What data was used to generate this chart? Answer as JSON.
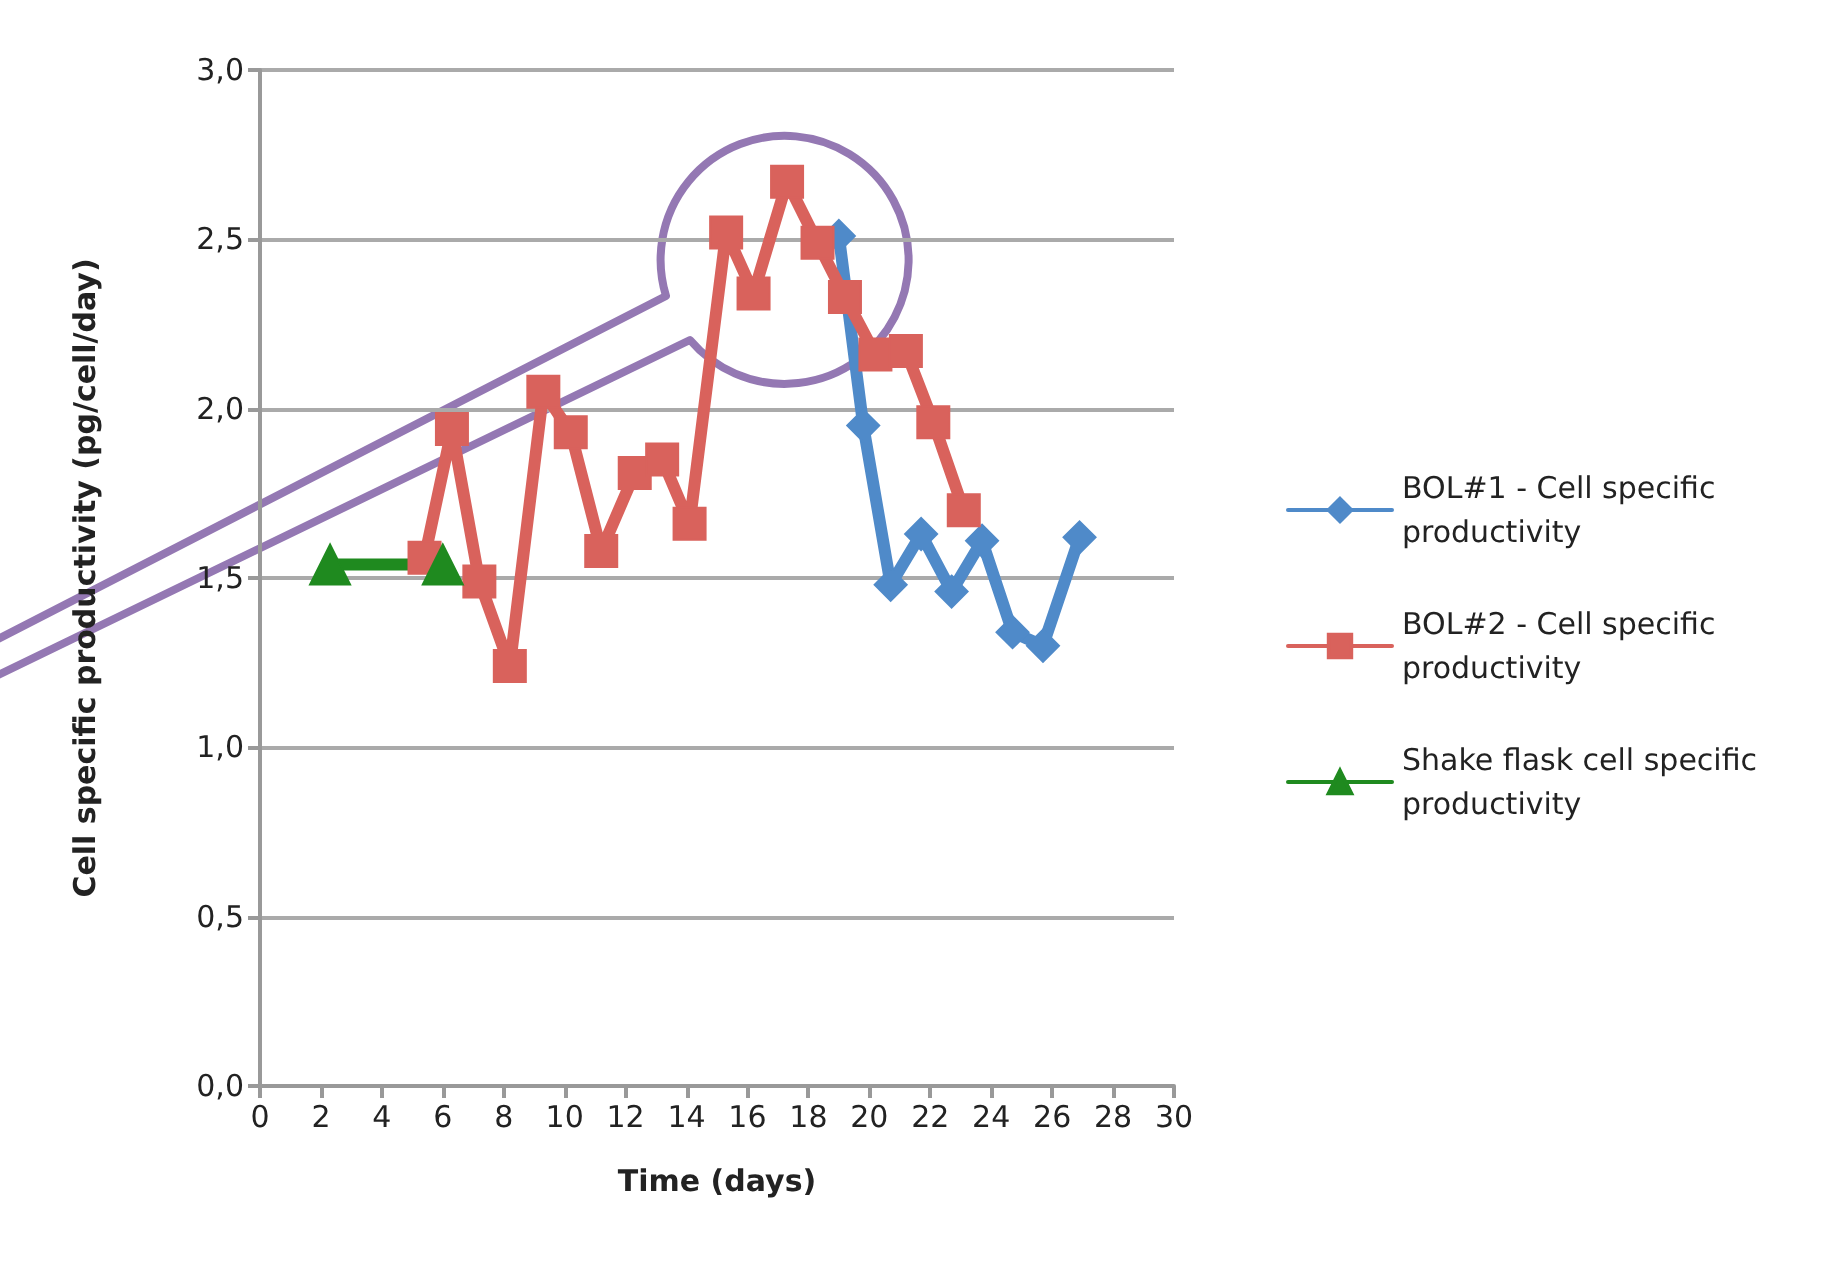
{
  "chart_data": {
    "type": "line",
    "xlabel": "Time (days)",
    "ylabel": "Cell specific productivity (pg/cell/day)",
    "xlim": [
      0,
      30
    ],
    "xticks": [
      0,
      2,
      4,
      6,
      8,
      10,
      12,
      14,
      16,
      18,
      20,
      22,
      24,
      26,
      28,
      30
    ],
    "ylim": [
      0,
      3
    ],
    "yticks": [
      {
        "value": 0,
        "label": "0,0"
      },
      {
        "value": 0.5,
        "label": "0,5"
      },
      {
        "value": 1,
        "label": "1,0"
      },
      {
        "value": 1.5,
        "label": "1,5"
      },
      {
        "value": 2,
        "label": "2,0"
      },
      {
        "value": 2.5,
        "label": "2,5"
      },
      {
        "value": 3,
        "label": "3,0"
      }
    ],
    "grid": "y",
    "legend": "right",
    "series": [
      {
        "name": "BOL#1 - Cell specific productivity",
        "color": "#4f8ac9",
        "marker": "diamond",
        "x": [
          19.0,
          19.8,
          20.7,
          21.7,
          22.7,
          23.7,
          24.7,
          25.7,
          26.9
        ],
        "values": [
          2.51,
          1.95,
          1.48,
          1.63,
          1.46,
          1.61,
          1.34,
          1.3,
          1.62
        ]
      },
      {
        "name": "BOL#2 - Cell specific productivity",
        "color": "#d9625c",
        "marker": "square",
        "x": [
          5.4,
          6.3,
          7.2,
          8.2,
          9.3,
          10.2,
          11.2,
          12.3,
          13.2,
          14.1,
          15.3,
          16.2,
          17.3,
          18.3,
          19.2,
          20.2,
          21.2,
          22.1,
          23.1
        ],
        "values": [
          1.56,
          1.94,
          1.49,
          1.24,
          2.05,
          1.93,
          1.58,
          1.81,
          1.85,
          1.66,
          2.52,
          2.34,
          2.67,
          2.49,
          2.33,
          2.16,
          2.17,
          1.96,
          1.7
        ]
      },
      {
        "name": "Shake flask cell specific productivity",
        "color": "#1f8a1f",
        "marker": "triangle",
        "x": [
          2.3,
          6.0
        ],
        "values": [
          1.54,
          1.54
        ]
      }
    ]
  }
}
